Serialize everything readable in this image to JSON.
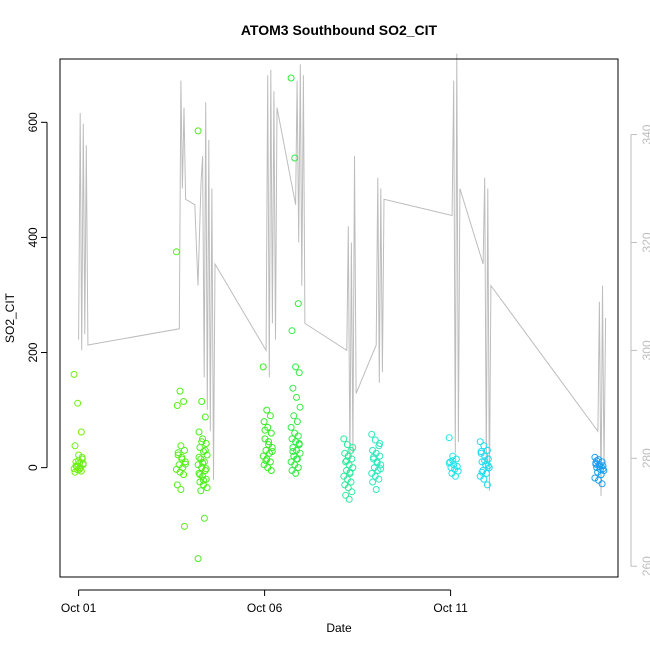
{
  "chart_data": {
    "type": "scatter",
    "title": "ATOM3 Southbound SO2_CIT",
    "xlabel": "Date",
    "ylabel": "SO2_CIT",
    "xlim": [
      "2017-09-30T12:00",
      "2017-10-15T12:00"
    ],
    "ylim": [
      -190,
      710
    ],
    "y2lim": [
      258,
      354
    ],
    "x_ticks": [
      {
        "label": "Oct 01",
        "value": "2017-10-01T00:00"
      },
      {
        "label": "Oct 06",
        "value": "2017-10-06T00:00"
      },
      {
        "label": "Oct 11",
        "value": "2017-10-11T00:00"
      }
    ],
    "y_ticks": [
      0,
      200,
      400,
      600
    ],
    "y2_ticks": [
      260,
      280,
      300,
      320,
      340
    ],
    "grid": false,
    "series": [
      {
        "kind": "points",
        "axis": "left",
        "clusters": [
          {
            "x": "2017-10-01T00:00",
            "color": "#6ff012",
            "values": [
              162,
              112,
              62,
              38,
              22,
              15,
              10,
              8,
              5,
              2,
              0,
              -2,
              -4,
              -6,
              -8,
              12,
              18,
              3,
              -3,
              7
            ]
          },
          {
            "x": "2017-10-03T18:00",
            "color": "#55ef18",
            "values": [
              375,
              133,
              115,
              108,
              38,
              30,
              22,
              15,
              10,
              5,
              0,
              -3,
              -8,
              -12,
              -30,
              -38,
              -102,
              26,
              18,
              6
            ]
          },
          {
            "x": "2017-10-04T08:00",
            "color": "#4ded1c",
            "values": [
              585,
              115,
              88,
              62,
              50,
              42,
              35,
              28,
              22,
              15,
              10,
              5,
              0,
              -5,
              -10,
              -15,
              -20,
              -25,
              -30,
              -35,
              -40,
              -88,
              -158,
              45,
              30,
              18,
              8,
              -2,
              -12,
              -22
            ]
          },
          {
            "x": "2017-10-06T02:00",
            "color": "#39ec27",
            "values": [
              175,
              100,
              90,
              80,
              70,
              60,
              50,
              40,
              35,
              30,
              25,
              20,
              15,
              10,
              5,
              0,
              -5,
              65,
              45,
              28,
              12
            ]
          },
          {
            "x": "2017-10-06T20:00",
            "color": "#33eb45",
            "values": [
              677,
              538,
              285,
              238,
              175,
              165,
              138,
              122,
              105,
              90,
              80,
              70,
              60,
              55,
              50,
              45,
              40,
              35,
              30,
              25,
              20,
              15,
              10,
              5,
              0,
              -5,
              -10,
              42,
              28,
              15
            ]
          },
          {
            "x": "2017-10-08T06:00",
            "color": "#2fe99e",
            "values": [
              50,
              40,
              30,
              25,
              20,
              15,
              10,
              5,
              0,
              -5,
              -10,
              -15,
              -20,
              -25,
              -30,
              -35,
              -42,
              -48,
              -55,
              35,
              12,
              -8
            ]
          },
          {
            "x": "2017-10-09T00:00",
            "color": "#2de8bd",
            "values": [
              58,
              48,
              38,
              30,
              25,
              20,
              15,
              10,
              5,
              0,
              -5,
              -10,
              -15,
              -20,
              -25,
              -38,
              42,
              18,
              8,
              -2
            ]
          },
          {
            "x": "2017-10-11T02:00",
            "color": "#22e3e8",
            "values": [
              52,
              20,
              15,
              10,
              5,
              2,
              0,
              -3,
              -6,
              -10,
              -15,
              8,
              12
            ]
          },
          {
            "x": "2017-10-11T22:00",
            "color": "#1fdcf0",
            "values": [
              45,
              38,
              30,
              25,
              20,
              15,
              10,
              5,
              0,
              -5,
              -10,
              -15,
              -20,
              -30,
              28,
              12,
              3,
              -8
            ]
          },
          {
            "x": "2017-10-15T00:00",
            "color": "#1a9ff0",
            "values": [
              18,
              14,
              10,
              8,
              5,
              3,
              0,
              -3,
              -5,
              -8,
              -12,
              -18,
              -22,
              -28,
              6,
              2,
              -2,
              12
            ]
          }
        ]
      },
      {
        "kind": "line",
        "axis": "right",
        "color": "#bdbdbd",
        "x": [
          "2017-10-01T00:00",
          "2017-10-01T01:00",
          "2017-10-01T02:00",
          "2017-10-01T03:00",
          "2017-10-01T04:00",
          "2017-10-01T05:00",
          "2017-10-01T06:00",
          "2017-10-03T17:00",
          "2017-10-03T18:00",
          "2017-10-03T19:00",
          "2017-10-03T20:00",
          "2017-10-03T21:00",
          "2017-10-04T03:00",
          "2017-10-04T05:00",
          "2017-10-04T07:00",
          "2017-10-04T08:00",
          "2017-10-04T09:00",
          "2017-10-04T10:00",
          "2017-10-04T11:00",
          "2017-10-04T12:00",
          "2017-10-04T13:00",
          "2017-10-04T14:00",
          "2017-10-04T15:00",
          "2017-10-04T16:00",
          "2017-10-06T01:00",
          "2017-10-06T02:00",
          "2017-10-06T03:00",
          "2017-10-06T04:00",
          "2017-10-06T05:00",
          "2017-10-06T06:00",
          "2017-10-06T07:00",
          "2017-10-06T08:00",
          "2017-10-06T20:00",
          "2017-10-06T21:00",
          "2017-10-06T22:00",
          "2017-10-06T23:00",
          "2017-10-07T00:00",
          "2017-10-07T01:00",
          "2017-10-07T02:00",
          "2017-10-08T05:00",
          "2017-10-08T06:00",
          "2017-10-08T07:00",
          "2017-10-08T08:00",
          "2017-10-08T09:00",
          "2017-10-08T10:00",
          "2017-10-08T11:00",
          "2017-10-09T00:00",
          "2017-10-09T01:00",
          "2017-10-09T02:00",
          "2017-10-09T03:00",
          "2017-10-09T04:00",
          "2017-10-09T05:00",
          "2017-10-11T01:00",
          "2017-10-11T02:00",
          "2017-10-11T03:00",
          "2017-10-11T04:00",
          "2017-10-11T05:00",
          "2017-10-11T06:00",
          "2017-10-11T21:00",
          "2017-10-11T22:00",
          "2017-10-11T23:00",
          "2017-10-12T00:00",
          "2017-10-12T01:00",
          "2017-10-12T02:00",
          "2017-10-14T23:00",
          "2017-10-15T00:00",
          "2017-10-15T01:00",
          "2017-10-15T02:00",
          "2017-10-15T03:00",
          "2017-10-15T04:00"
        ],
        "y": [
          302,
          344,
          300,
          342,
          303,
          338,
          301,
          304,
          350,
          330,
          345,
          328,
          327,
          312,
          331,
          336,
          295,
          346,
          289,
          339,
          285,
          330,
          276,
          316,
          300,
          351,
          295,
          352,
          305,
          348,
          302,
          345,
          327,
          350,
          320,
          353,
          312,
          351,
          305,
          300,
          323,
          279,
          320,
          281,
          336,
          292,
          301,
          332,
          294,
          330,
          296,
          328,
          325,
          350,
          281,
          355,
          283,
          330,
          316,
          332,
          279,
          330,
          274,
          312,
          285,
          309,
          273,
          312,
          278,
          306
        ]
      }
    ]
  }
}
